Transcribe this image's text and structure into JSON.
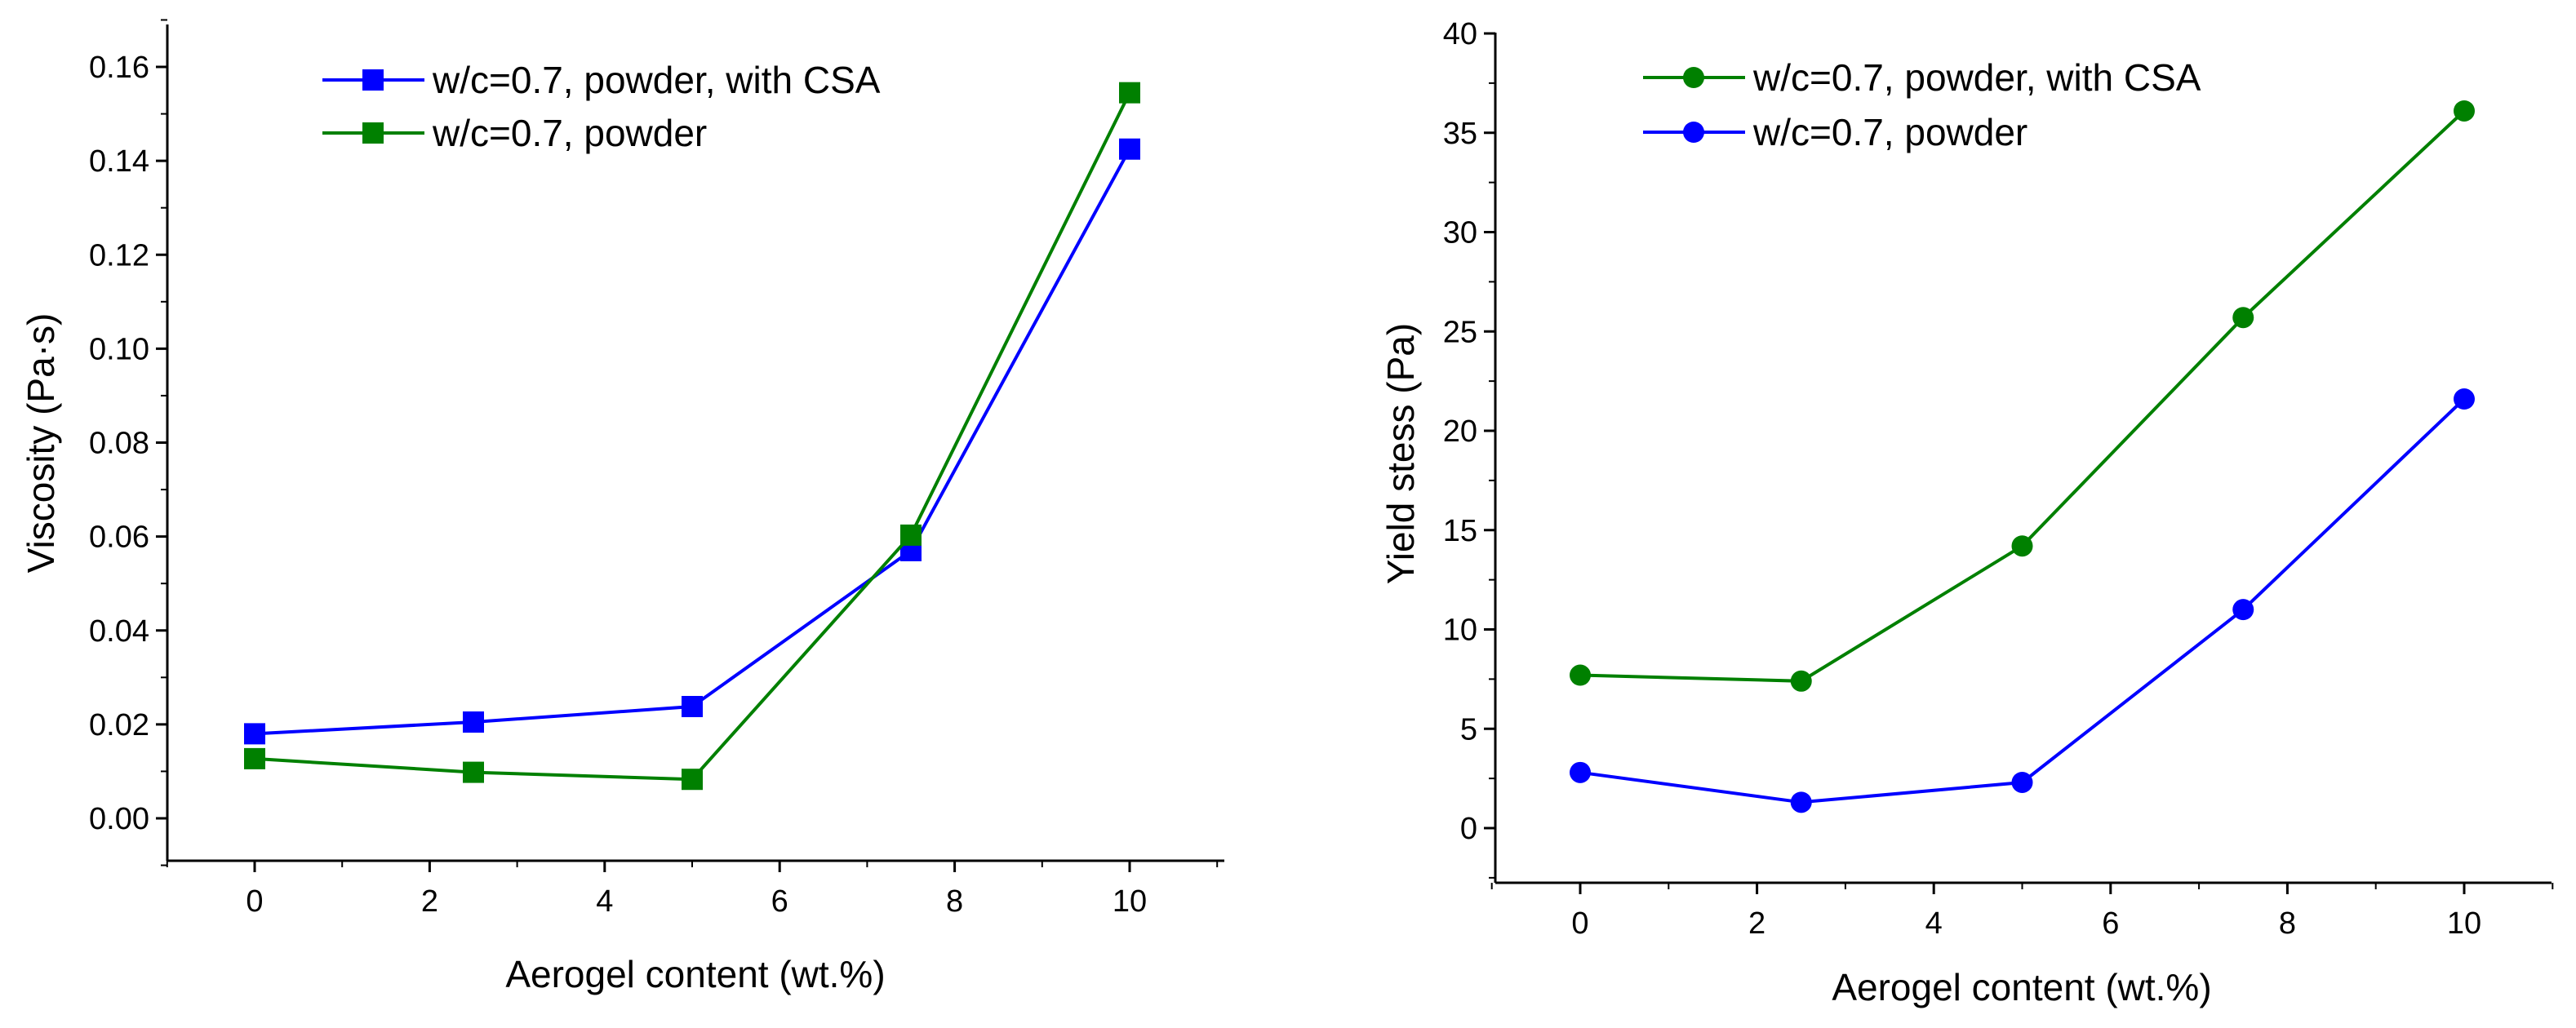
{
  "chart_data": [
    {
      "type": "line",
      "title": "",
      "xlabel": "Aerogel content (wt.%)",
      "ylabel": "Viscosity (Pa·s)",
      "xlim": [
        -1,
        11
      ],
      "ylim": [
        -0.01,
        0.17
      ],
      "xticks": [
        0,
        2,
        4,
        6,
        8,
        10
      ],
      "xtick_labels": [
        "0",
        "2",
        "4",
        "6",
        "8",
        "10"
      ],
      "yticks": [
        0.0,
        0.02,
        0.04,
        0.06,
        0.08,
        0.1,
        0.12,
        0.14,
        0.16
      ],
      "ytick_labels": [
        "0.00",
        "0.02",
        "0.04",
        "0.06",
        "0.08",
        "0.10",
        "0.12",
        "0.14",
        "0.16"
      ],
      "marker": "square",
      "legend_position": "top-left",
      "x": [
        0,
        2.5,
        5,
        7.5,
        10
      ],
      "series": [
        {
          "name": "w/c=0.7, powder, with CSA",
          "color": "#0000ff",
          "values": [
            0.018,
            0.0205,
            0.0238,
            0.057,
            0.1425
          ]
        },
        {
          "name": "w/c=0.7, powder",
          "color": "#008000",
          "values": [
            0.0127,
            0.0098,
            0.0083,
            0.0603,
            0.1545
          ]
        }
      ]
    },
    {
      "type": "line",
      "title": "",
      "xlabel": "Aerogel content (wt.%)",
      "ylabel": "Yield stess (Pa)",
      "xlim": [
        -1,
        11
      ],
      "ylim": [
        -3,
        40
      ],
      "xticks": [
        0,
        2,
        4,
        6,
        8,
        10
      ],
      "xtick_labels": [
        "0",
        "2",
        "4",
        "6",
        "8",
        "10"
      ],
      "yticks": [
        0,
        5,
        10,
        15,
        20,
        25,
        30,
        35,
        40
      ],
      "ytick_labels": [
        "0",
        "5",
        "10",
        "15",
        "20",
        "25",
        "30",
        "35",
        "40"
      ],
      "marker": "circle",
      "legend_position": "top-left",
      "x": [
        0,
        2.5,
        5,
        7.5,
        10
      ],
      "series": [
        {
          "name": "w/c=0.7, powder, with CSA",
          "color": "#008000",
          "values": [
            7.7,
            7.4,
            14.2,
            25.7,
            36.1
          ]
        },
        {
          "name": "w/c=0.7, powder",
          "color": "#0000ff",
          "values": [
            2.8,
            1.3,
            2.3,
            11.0,
            21.6
          ]
        }
      ]
    }
  ]
}
